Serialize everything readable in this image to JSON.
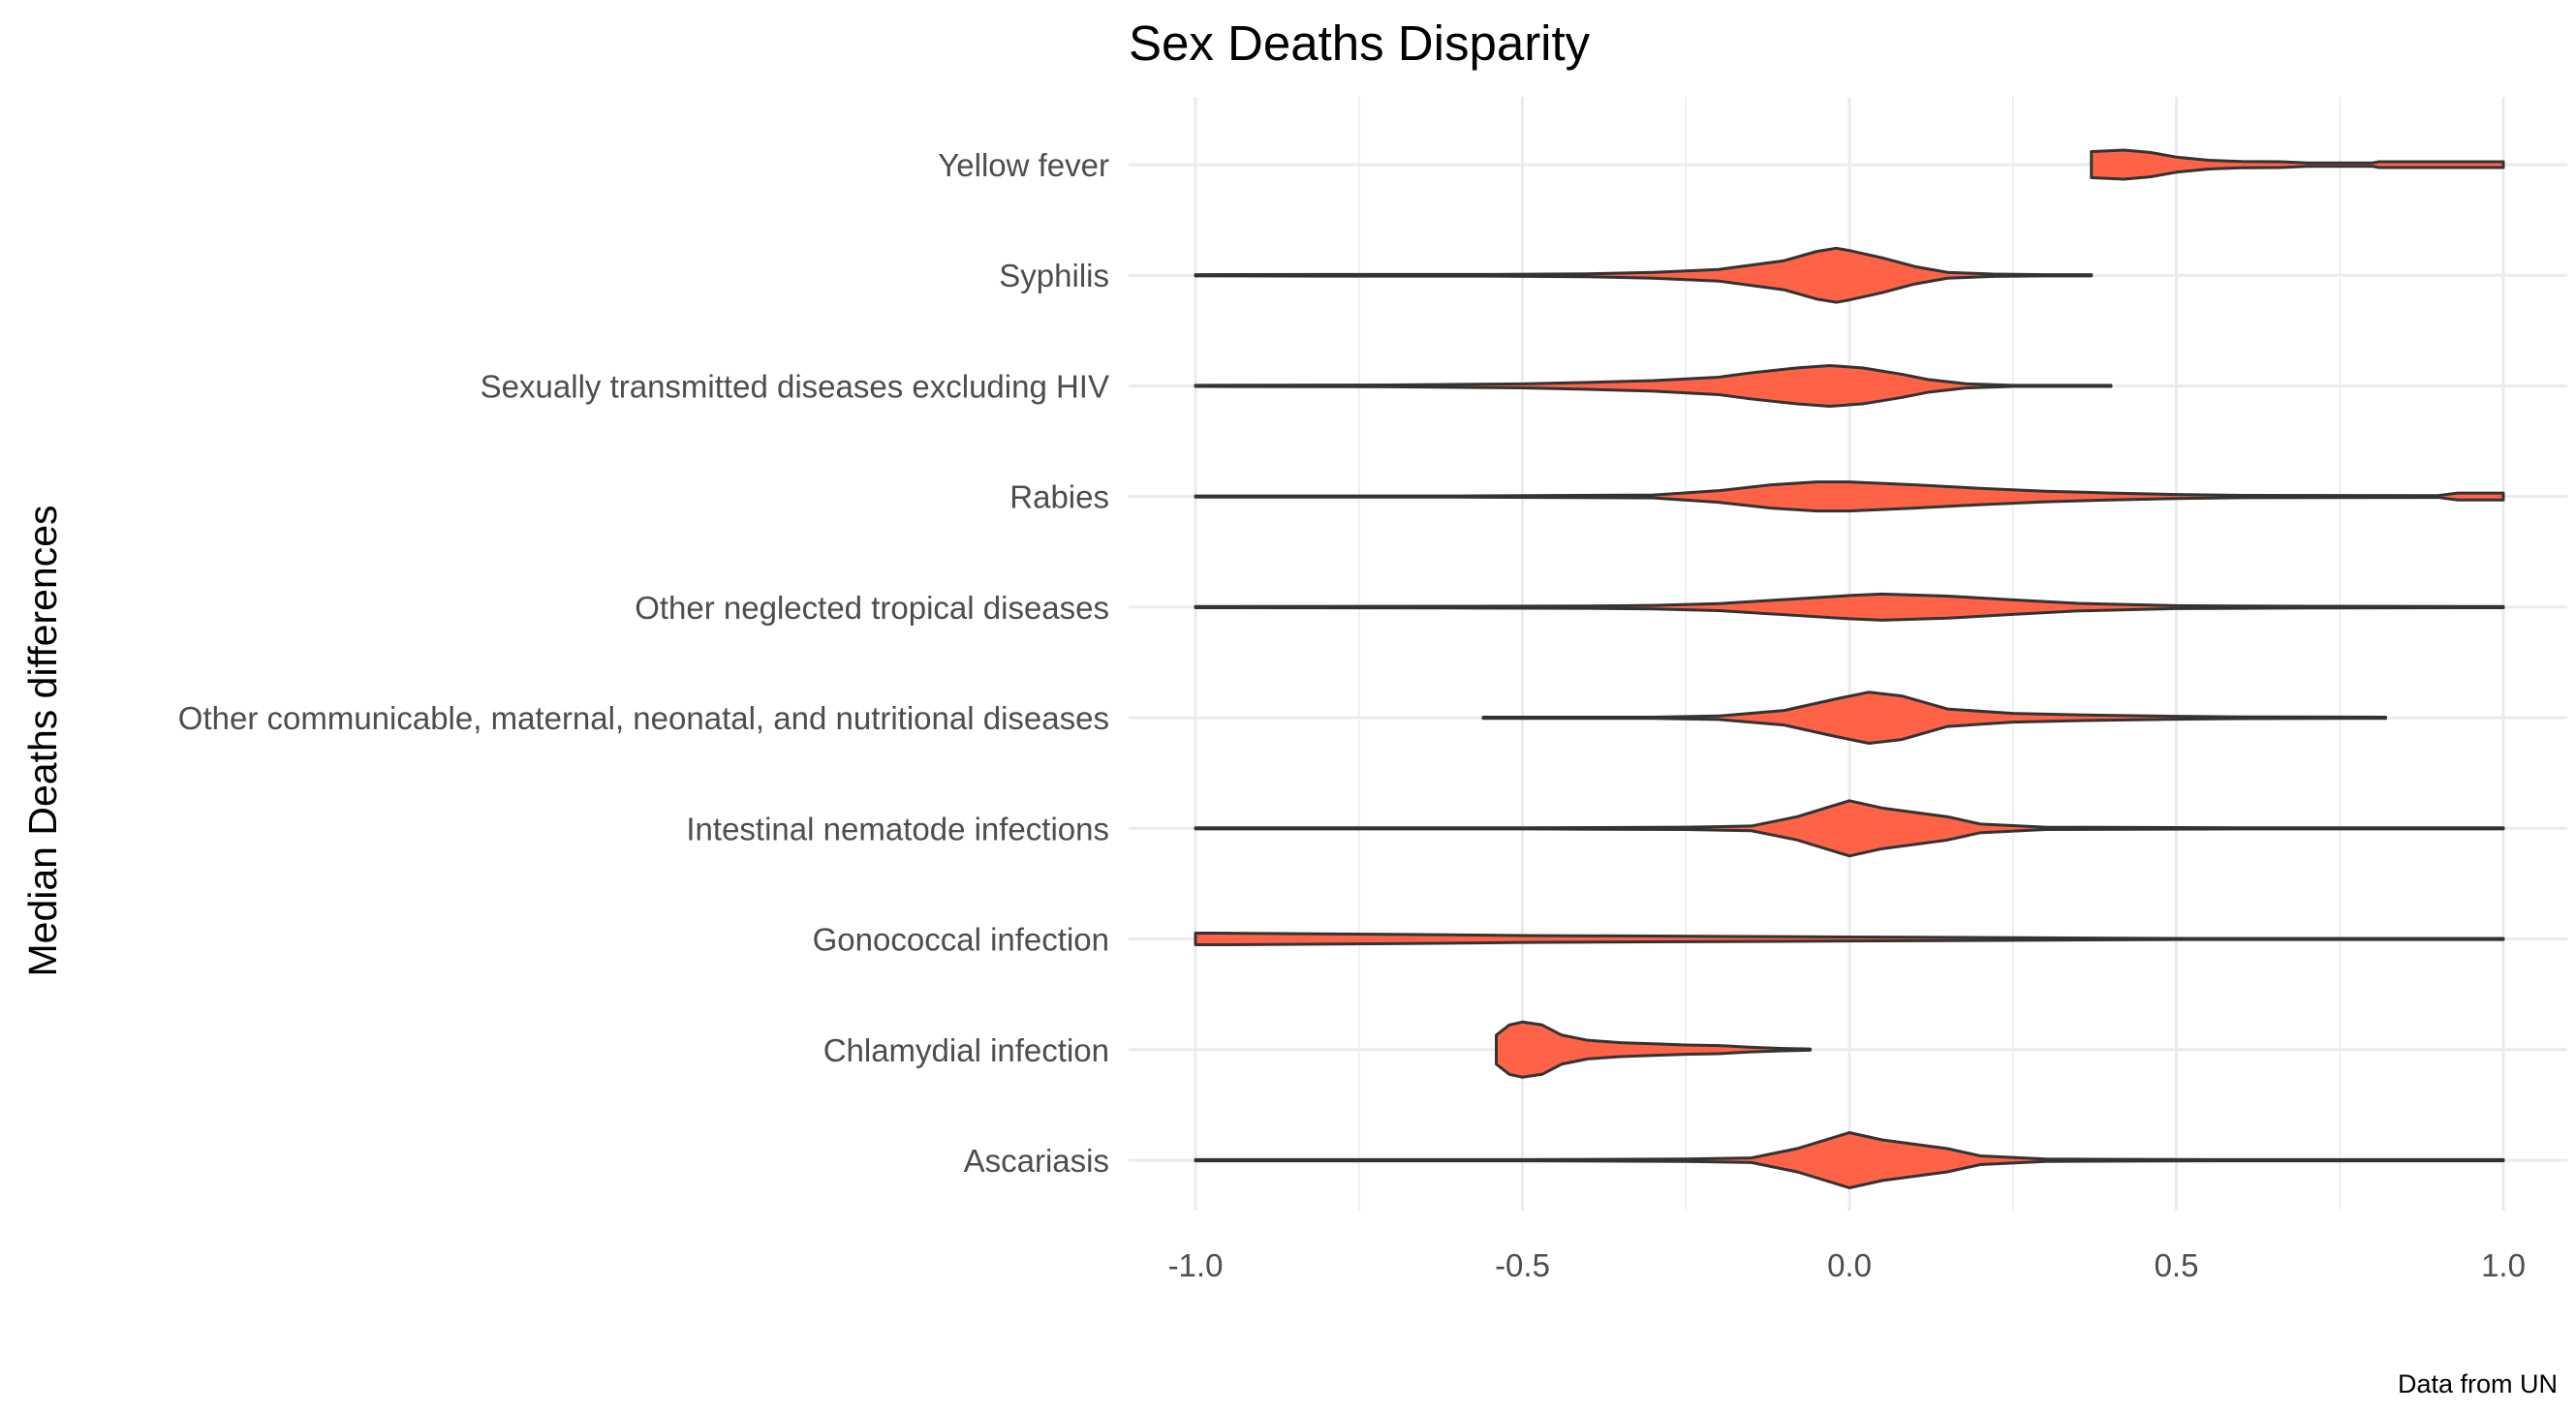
{
  "chart_data": {
    "type": "violin",
    "orientation": "horizontal",
    "title": "Sex Deaths Disparity",
    "xlabel": "",
    "ylabel": "Median Deaths differences",
    "caption": "Data from UN",
    "xlim": [
      -1.0,
      1.0
    ],
    "x_ticks": [
      "-1.0",
      "-0.5",
      "0.0",
      "0.5",
      "1.0"
    ],
    "x_tick_values": [
      -1.0,
      -0.5,
      0.0,
      0.5,
      1.0
    ],
    "fill_color": "#FF6347",
    "stroke_color": "#333333",
    "grid": true,
    "categories": [
      "Yellow fever",
      "Syphilis",
      "Sexually transmitted diseases excluding HIV",
      "Rabies",
      "Other neglected tropical diseases",
      "Other communicable, maternal, neonatal, and nutritional diseases",
      "Intestinal nematode infections",
      "Gonococcal infection",
      "Chlamydial infection",
      "Ascariasis"
    ],
    "violins": [
      {
        "category": "Yellow fever",
        "min": 0.37,
        "max": 1.0,
        "density": [
          [
            0.37,
            0.45
          ],
          [
            0.4,
            0.48
          ],
          [
            0.42,
            0.5
          ],
          [
            0.46,
            0.42
          ],
          [
            0.5,
            0.26
          ],
          [
            0.55,
            0.15
          ],
          [
            0.6,
            0.11
          ],
          [
            0.66,
            0.1
          ],
          [
            0.7,
            0.06
          ],
          [
            0.8,
            0.06
          ],
          [
            0.81,
            0.1
          ],
          [
            0.9,
            0.1
          ],
          [
            1.0,
            0.1
          ]
        ]
      },
      {
        "category": "Syphilis",
        "min": -1.0,
        "max": 0.37,
        "density": [
          [
            -1.0,
            0.02
          ],
          [
            -0.8,
            0.03
          ],
          [
            -0.55,
            0.03
          ],
          [
            -0.4,
            0.05
          ],
          [
            -0.3,
            0.1
          ],
          [
            -0.2,
            0.2
          ],
          [
            -0.1,
            0.5
          ],
          [
            -0.05,
            0.82
          ],
          [
            -0.02,
            0.93
          ],
          [
            0.0,
            0.85
          ],
          [
            0.05,
            0.6
          ],
          [
            0.1,
            0.3
          ],
          [
            0.15,
            0.1
          ],
          [
            0.22,
            0.04
          ],
          [
            0.3,
            0.02
          ],
          [
            0.37,
            0.02
          ]
        ]
      },
      {
        "category": "Sexually transmitted diseases excluding HIV",
        "min": -1.0,
        "max": 0.4,
        "density": [
          [
            -1.0,
            0.02
          ],
          [
            -0.7,
            0.03
          ],
          [
            -0.5,
            0.07
          ],
          [
            -0.4,
            0.12
          ],
          [
            -0.3,
            0.18
          ],
          [
            -0.2,
            0.3
          ],
          [
            -0.15,
            0.45
          ],
          [
            -0.08,
            0.62
          ],
          [
            -0.03,
            0.7
          ],
          [
            0.02,
            0.62
          ],
          [
            0.08,
            0.4
          ],
          [
            0.12,
            0.22
          ],
          [
            0.18,
            0.07
          ],
          [
            0.25,
            0.02
          ],
          [
            0.4,
            0.02
          ]
        ]
      },
      {
        "category": "Rabies",
        "min": -1.0,
        "max": 1.0,
        "density": [
          [
            -1.0,
            0.02
          ],
          [
            -0.6,
            0.02
          ],
          [
            -0.3,
            0.05
          ],
          [
            -0.2,
            0.2
          ],
          [
            -0.12,
            0.4
          ],
          [
            -0.05,
            0.5
          ],
          [
            0.0,
            0.5
          ],
          [
            0.1,
            0.4
          ],
          [
            0.2,
            0.28
          ],
          [
            0.3,
            0.18
          ],
          [
            0.4,
            0.12
          ],
          [
            0.5,
            0.07
          ],
          [
            0.6,
            0.04
          ],
          [
            0.9,
            0.03
          ],
          [
            0.93,
            0.12
          ],
          [
            1.0,
            0.12
          ]
        ]
      },
      {
        "category": "Other neglected tropical diseases",
        "min": -1.0,
        "max": 1.0,
        "density": [
          [
            -1.0,
            0.02
          ],
          [
            -0.6,
            0.03
          ],
          [
            -0.4,
            0.04
          ],
          [
            -0.3,
            0.06
          ],
          [
            -0.2,
            0.12
          ],
          [
            -0.1,
            0.26
          ],
          [
            0.0,
            0.4
          ],
          [
            0.05,
            0.45
          ],
          [
            0.15,
            0.38
          ],
          [
            0.25,
            0.25
          ],
          [
            0.35,
            0.13
          ],
          [
            0.5,
            0.05
          ],
          [
            0.7,
            0.03
          ],
          [
            1.0,
            0.02
          ]
        ]
      },
      {
        "category": "Other communicable, maternal, neonatal, and nutritional diseases",
        "min": -0.56,
        "max": 0.82,
        "density": [
          [
            -0.56,
            0.02
          ],
          [
            -0.3,
            0.02
          ],
          [
            -0.2,
            0.06
          ],
          [
            -0.1,
            0.25
          ],
          [
            -0.02,
            0.65
          ],
          [
            0.03,
            0.88
          ],
          [
            0.08,
            0.75
          ],
          [
            0.15,
            0.3
          ],
          [
            0.25,
            0.15
          ],
          [
            0.35,
            0.1
          ],
          [
            0.5,
            0.05
          ],
          [
            0.6,
            0.03
          ],
          [
            0.82,
            0.02
          ]
        ]
      },
      {
        "category": "Intestinal nematode infections",
        "min": -1.0,
        "max": 1.0,
        "density": [
          [
            -1.0,
            0.02
          ],
          [
            -0.5,
            0.02
          ],
          [
            -0.25,
            0.04
          ],
          [
            -0.15,
            0.08
          ],
          [
            -0.08,
            0.4
          ],
          [
            0.0,
            0.95
          ],
          [
            0.05,
            0.7
          ],
          [
            0.1,
            0.55
          ],
          [
            0.15,
            0.4
          ],
          [
            0.2,
            0.15
          ],
          [
            0.3,
            0.04
          ],
          [
            0.6,
            0.02
          ],
          [
            1.0,
            0.02
          ]
        ]
      },
      {
        "category": "Gonococcal infection",
        "min": -1.0,
        "max": 1.0,
        "density": [
          [
            -1.0,
            0.2
          ],
          [
            -0.97,
            0.2
          ],
          [
            -0.7,
            0.16
          ],
          [
            -0.5,
            0.12
          ],
          [
            -0.3,
            0.1
          ],
          [
            -0.1,
            0.08
          ],
          [
            0.1,
            0.06
          ],
          [
            0.3,
            0.04
          ],
          [
            0.5,
            0.02
          ],
          [
            1.0,
            0.02
          ]
        ]
      },
      {
        "category": "Chlamydial infection",
        "min": -0.54,
        "max": -0.06,
        "density": [
          [
            -0.54,
            0.5
          ],
          [
            -0.52,
            0.85
          ],
          [
            -0.5,
            0.95
          ],
          [
            -0.47,
            0.85
          ],
          [
            -0.44,
            0.5
          ],
          [
            -0.4,
            0.32
          ],
          [
            -0.35,
            0.24
          ],
          [
            -0.3,
            0.2
          ],
          [
            -0.25,
            0.16
          ],
          [
            -0.2,
            0.14
          ],
          [
            -0.15,
            0.08
          ],
          [
            -0.1,
            0.04
          ],
          [
            -0.06,
            0.02
          ]
        ]
      },
      {
        "category": "Ascariasis",
        "min": -1.0,
        "max": 1.0,
        "density": [
          [
            -1.0,
            0.02
          ],
          [
            -0.5,
            0.02
          ],
          [
            -0.25,
            0.04
          ],
          [
            -0.15,
            0.08
          ],
          [
            -0.08,
            0.4
          ],
          [
            0.0,
            0.95
          ],
          [
            0.05,
            0.7
          ],
          [
            0.1,
            0.55
          ],
          [
            0.15,
            0.4
          ],
          [
            0.2,
            0.15
          ],
          [
            0.3,
            0.04
          ],
          [
            0.6,
            0.02
          ],
          [
            1.0,
            0.02
          ]
        ]
      }
    ]
  }
}
